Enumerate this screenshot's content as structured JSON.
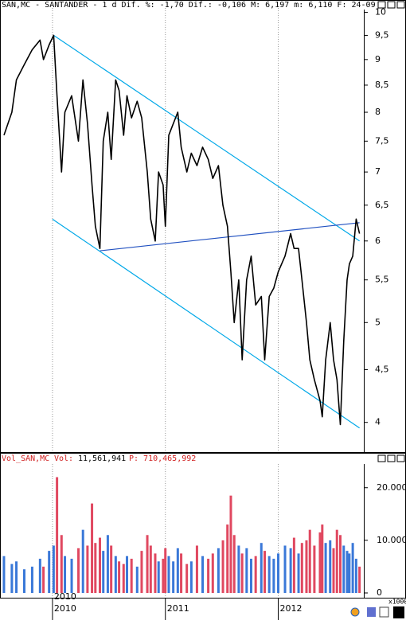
{
  "chart_data": [
    {
      "type": "line",
      "title": "SAN,MC - SANTANDER -  1 d Dif. %: -1,70 Dif.: -0,106 M: 6,197 m: 6,110 F: 24-09",
      "log_scale": true,
      "grid": true,
      "xlim": [
        2009.535,
        2012.765
      ],
      "xticks": [
        2010,
        2011,
        2012
      ],
      "ylim": [
        3.75,
        10.1
      ],
      "yticks": [
        4,
        {
          "value": 4.5,
          "label": "4,5"
        },
        5,
        {
          "value": 5.5,
          "label": "5,5"
        },
        6,
        {
          "value": 6.5,
          "label": "6,5"
        },
        7,
        {
          "value": 7.5,
          "label": "7,5"
        },
        8,
        {
          "value": 8.5,
          "label": "8,5"
        },
        9,
        {
          "value": 9.5,
          "label": "9,5"
        },
        10
      ],
      "series": [
        {
          "color": "#000000",
          "x": [
            2009.57,
            2009.64,
            2009.68,
            2009.75,
            2009.82,
            2009.89,
            2009.92,
            2009.97,
            2010.01,
            2010.04,
            2010.08,
            2010.11,
            2010.17,
            2010.23,
            2010.27,
            2010.31,
            2010.35,
            2010.38,
            2010.42,
            2010.45,
            2010.49,
            2010.52,
            2010.56,
            2010.59,
            2010.63,
            2010.66,
            2010.7,
            2010.75,
            2010.79,
            2010.84,
            2010.87,
            2010.91,
            2010.94,
            2010.98,
            2011.0,
            2011.03,
            2011.07,
            2011.11,
            2011.14,
            2011.19,
            2011.23,
            2011.28,
            2011.33,
            2011.38,
            2011.42,
            2011.47,
            2011.51,
            2011.55,
            2011.58,
            2011.61,
            2011.65,
            2011.68,
            2011.72,
            2011.76,
            2011.8,
            2011.85,
            2011.88,
            2011.92,
            2011.96,
            2012.0,
            2012.06,
            2012.11,
            2012.14,
            2012.18,
            2012.21,
            2012.25,
            2012.28,
            2012.32,
            2012.37,
            2012.39,
            2012.42,
            2012.46,
            2012.49,
            2012.52,
            2012.55,
            2012.58,
            2012.61,
            2012.63,
            2012.66,
            2012.69,
            2012.72
          ],
          "values": [
            7.6,
            8.0,
            8.6,
            8.9,
            9.2,
            9.4,
            9.0,
            9.3,
            9.5,
            8.3,
            7.0,
            8.0,
            8.3,
            7.5,
            8.6,
            7.8,
            6.8,
            6.2,
            5.9,
            7.5,
            8.0,
            7.2,
            8.6,
            8.4,
            7.6,
            8.3,
            7.9,
            8.2,
            7.9,
            7.0,
            6.3,
            6.0,
            7.0,
            6.8,
            6.2,
            7.6,
            7.8,
            8.0,
            7.4,
            7.0,
            7.3,
            7.1,
            7.4,
            7.2,
            6.9,
            7.1,
            6.5,
            6.2,
            5.6,
            5.0,
            5.5,
            4.6,
            5.5,
            5.8,
            5.2,
            5.3,
            4.6,
            5.3,
            5.4,
            5.6,
            5.8,
            6.1,
            5.9,
            5.9,
            5.5,
            5.0,
            4.6,
            4.4,
            4.2,
            4.05,
            4.6,
            5.0,
            4.6,
            4.4,
            3.98,
            4.8,
            5.5,
            5.7,
            5.8,
            6.3,
            6.1
          ]
        }
      ],
      "trendlines": [
        {
          "color": "#00a8e8",
          "x": [
            2010.01,
            2012.72
          ],
          "y": [
            9.5,
            6.0
          ]
        },
        {
          "color": "#00a8e8",
          "x": [
            2010.0,
            2012.72
          ],
          "y": [
            6.3,
            3.95
          ]
        },
        {
          "color": "#2050c0",
          "x": [
            2010.42,
            2012.72
          ],
          "y": [
            5.87,
            6.25
          ]
        }
      ]
    },
    {
      "type": "bar",
      "title": "Vol_SAN,MC",
      "volume_label": "Vol:",
      "volume": "11,561,941",
      "price_label": "P: 710,465,992",
      "y_unit": "x1000",
      "grid": true,
      "up_color": "#3a78d8",
      "down_color": "#e04860",
      "xlim": [
        2009.535,
        2012.765
      ],
      "xticks": [
        2010,
        2011,
        2012
      ],
      "ylim": [
        0,
        24500
      ],
      "yticks": [
        0,
        {
          "value": 10000,
          "label": "10.000"
        },
        {
          "value": 20000,
          "label": "20.000"
        }
      ],
      "values": [
        7000,
        5500,
        6000,
        4500,
        5000,
        6500,
        5000,
        8000,
        9000,
        22000,
        11000,
        7000,
        6500,
        8500,
        12000,
        9000,
        17000,
        9500,
        10500,
        8000,
        11000,
        9000,
        7000,
        6000,
        5500,
        7000,
        6500,
        5000,
        8000,
        11000,
        9000,
        7500,
        6000,
        6500,
        8500,
        7000,
        6000,
        8500,
        7500,
        5500,
        6000,
        9000,
        7000,
        6500,
        7500,
        8500,
        10000,
        13000,
        18500,
        11000,
        9000,
        7500,
        8500,
        6500,
        7000,
        9500,
        8000,
        7000,
        6500,
        7500,
        9000,
        8500,
        10500,
        7500,
        9500,
        10000,
        12000,
        9000,
        11500,
        13000,
        9500,
        10000,
        8500,
        12000,
        11000,
        9000,
        8000,
        7500,
        9500,
        6500,
        5000
      ]
    }
  ]
}
